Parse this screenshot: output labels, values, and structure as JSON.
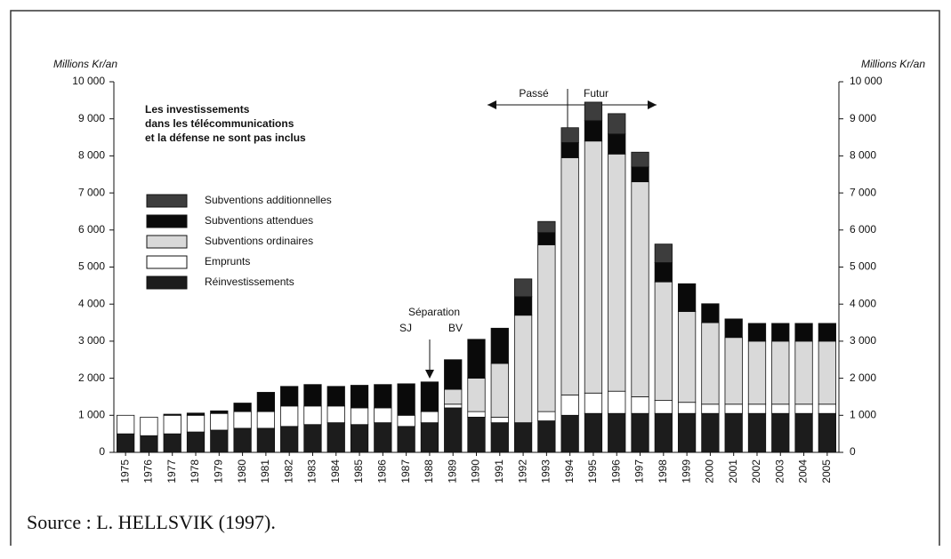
{
  "chart_data": {
    "type": "stacked-bar",
    "y_label_left": "Millions Kr/an",
    "y_label_right": "Millions Kr/an",
    "note": [
      "Les investissements",
      "dans les télécommunications",
      "et la défense ne sont pas inclus"
    ],
    "passe": "Passé",
    "futur": "Futur",
    "separation": "Séparation",
    "sj": "SJ",
    "bv": "BV",
    "source": "Source : L. HELLSVIK (1997).",
    "categories": [
      "1975",
      "1976",
      "1977",
      "1978",
      "1979",
      "1980",
      "1981",
      "1982",
      "1983",
      "1984",
      "1985",
      "1986",
      "1987",
      "1988",
      "1989",
      "1990",
      "1991",
      "1992",
      "1993",
      "1994",
      "1995",
      "1996",
      "1997",
      "1998",
      "1999",
      "2000",
      "2001",
      "2002",
      "2003",
      "2004",
      "2005"
    ],
    "series": [
      {
        "name": "Réinvestissements",
        "color": "#1c1c1c",
        "values": [
          500,
          450,
          500,
          550,
          600,
          650,
          650,
          700,
          750,
          800,
          750,
          800,
          700,
          800,
          1200,
          950,
          800,
          800,
          850,
          1000,
          1050,
          1050,
          1050,
          1050,
          1050,
          1050,
          1050,
          1050,
          1050,
          1050,
          1050
        ]
      },
      {
        "name": "Emprunts",
        "color": "#ffffff",
        "values": [
          500,
          500,
          500,
          450,
          450,
          450,
          450,
          550,
          500,
          450,
          450,
          400,
          300,
          300,
          100,
          150,
          150,
          0,
          250,
          550,
          550,
          600,
          450,
          350,
          300,
          250,
          250,
          250,
          250,
          250,
          250
        ]
      },
      {
        "name": "Subventions ordinaires",
        "color": "#d9d9d9",
        "values": [
          0,
          0,
          0,
          0,
          0,
          0,
          0,
          0,
          0,
          0,
          0,
          0,
          0,
          0,
          400,
          900,
          1450,
          2900,
          4500,
          6400,
          6800,
          6400,
          5800,
          3200,
          2450,
          2200,
          1800,
          1700,
          1700,
          1700,
          1700
        ]
      },
      {
        "name": "Subventions attendues",
        "color": "#0a0a0a",
        "values": [
          0,
          0,
          30,
          60,
          70,
          230,
          520,
          530,
          580,
          530,
          610,
          630,
          850,
          800,
          800,
          1050,
          950,
          500,
          330,
          410,
          550,
          540,
          400,
          520,
          750,
          510,
          500,
          480,
          480,
          480,
          480
        ]
      },
      {
        "name": "Subventions additionnelles",
        "color": "#3d3d3d",
        "values": [
          0,
          0,
          0,
          0,
          0,
          0,
          0,
          0,
          0,
          0,
          0,
          0,
          0,
          0,
          0,
          0,
          0,
          480,
          300,
          400,
          500,
          550,
          400,
          500,
          0,
          0,
          0,
          0,
          0,
          0,
          0
        ]
      }
    ],
    "ylim": [
      0,
      10000
    ],
    "yticks": [
      0,
      {
        "value": 1000,
        "label": "1 000"
      },
      {
        "value": 2000,
        "label": "2 000"
      },
      {
        "value": 3000,
        "label": "3 000"
      },
      {
        "value": 4000,
        "label": "4 000"
      },
      {
        "value": 5000,
        "label": "5 000"
      },
      {
        "value": 6000,
        "label": "6 000"
      },
      {
        "value": 7000,
        "label": "7 000"
      },
      {
        "value": 8000,
        "label": "8 000"
      },
      {
        "value": 9000,
        "label": "9 000"
      },
      {
        "value": 10000,
        "label": "10 000"
      }
    ]
  }
}
